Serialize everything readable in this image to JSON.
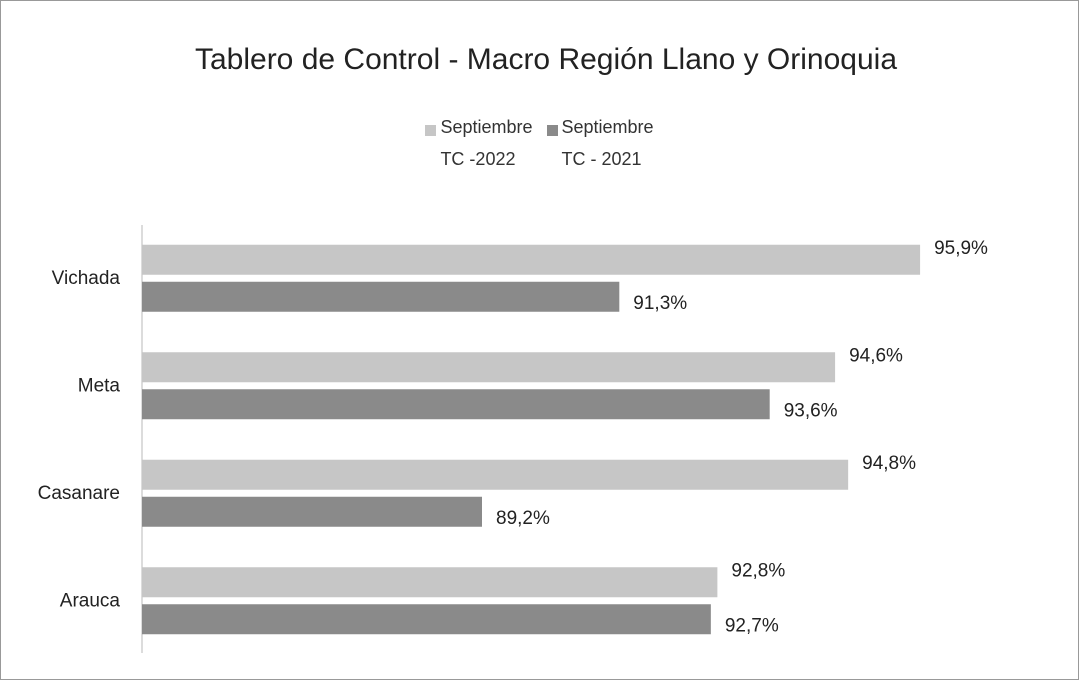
{
  "chart_data": {
    "type": "hbar",
    "title": "Tablero de Control - Macro Región Llano y Orinoquia",
    "categories": [
      "Vichada",
      "Meta",
      "Casanare",
      "Arauca"
    ],
    "series": [
      {
        "name": "Septiembre\nTC -2022",
        "color": "#c6c6c6",
        "values": [
          95.9,
          94.6,
          94.8,
          92.8
        ],
        "value_labels": [
          "95,9%",
          "94,6%",
          "94,8%",
          "92,8%"
        ]
      },
      {
        "name": "Septiembre\nTC - 2021",
        "color": "#8a8a8a",
        "values": [
          91.3,
          93.6,
          89.2,
          92.7
        ],
        "value_labels": [
          "91,3%",
          "93,6%",
          "89,2%",
          "92,7%"
        ]
      }
    ],
    "xlim": [
      84,
      97
    ],
    "legend": "top"
  }
}
